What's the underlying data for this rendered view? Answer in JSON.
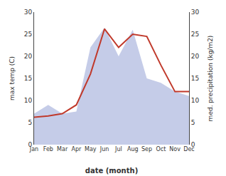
{
  "chart_data": {
    "type": "line",
    "xlabel": "date (month)",
    "ylabel": "max temp (C)",
    "y2label": "med. precipitation (kg/m2)",
    "categories": [
      "Jan",
      "Feb",
      "Mar",
      "Apr",
      "May",
      "Jun",
      "Jul",
      "Aug",
      "Sep",
      "Oct",
      "Nov",
      "Dec"
    ],
    "series": [
      {
        "type": "area",
        "axis": "y2",
        "color": "#c5cce8",
        "values": [
          7.0,
          9.0,
          7.0,
          7.5,
          22.0,
          26.5,
          20.0,
          26.0,
          15.0,
          14.0,
          12.0,
          11.0
        ]
      },
      {
        "type": "line",
        "axis": "y",
        "color": "#c0392b",
        "values": [
          6.2,
          6.5,
          7.0,
          9.0,
          16.0,
          26.2,
          22.0,
          25.0,
          24.5,
          18.0,
          12.0,
          12.0
        ]
      }
    ],
    "ylim": [
      0,
      30
    ],
    "yticks": [
      0,
      5,
      10,
      15,
      20,
      25,
      30
    ],
    "y2lim": [
      0,
      30
    ],
    "y2ticks": [
      0,
      5,
      10,
      15,
      20,
      25,
      30
    ],
    "grid": false
  }
}
